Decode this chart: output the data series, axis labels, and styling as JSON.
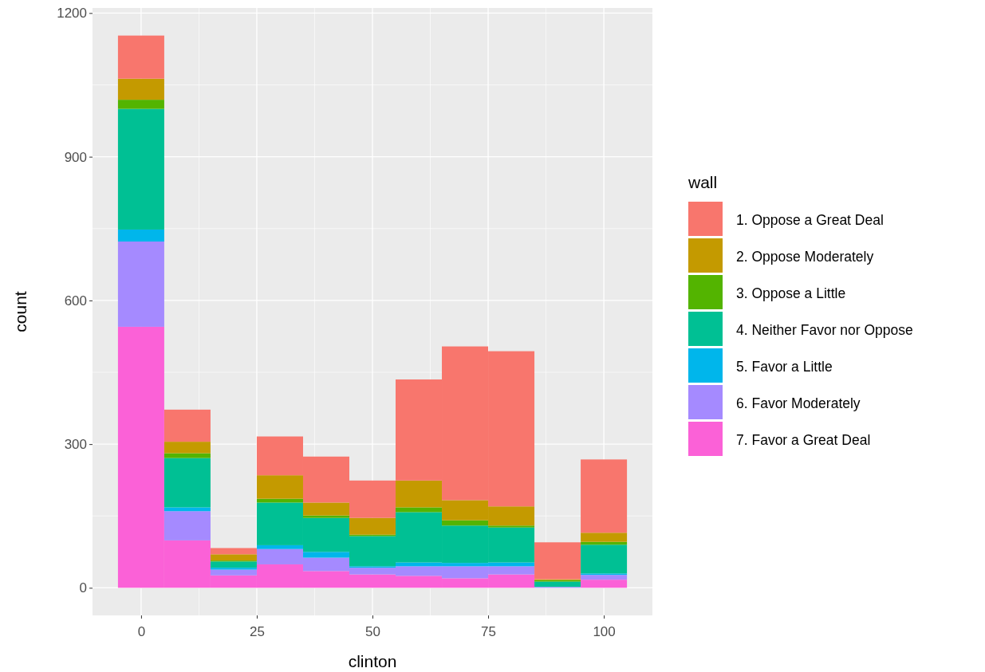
{
  "chart_data": {
    "type": "bar",
    "xlabel": "clinton",
    "ylabel": "count",
    "legend_title": "wall",
    "legend": "right",
    "grid": true,
    "stacked": true,
    "x": [
      0,
      10,
      20,
      30,
      40,
      50,
      60,
      70,
      80,
      90,
      100
    ],
    "xlim": [
      -10.5,
      110.5
    ],
    "xticks": [
      0,
      25,
      50,
      75,
      100
    ],
    "ylim": [
      -57.6,
      1210.6
    ],
    "yticks": [
      0,
      300,
      600,
      900,
      1200
    ],
    "series": [
      {
        "name": "7. Favor a Great Deal",
        "color": "#fb61d7",
        "values": [
          545,
          99,
          26,
          49,
          35,
          28,
          25,
          20,
          28,
          0,
          17
        ]
      },
      {
        "name": "6. Favor Moderately",
        "color": "#a58aff",
        "values": [
          178,
          61,
          12,
          32,
          28,
          14,
          20,
          25,
          17,
          2,
          10
        ]
      },
      {
        "name": "5. Favor a Little",
        "color": "#00b6eb",
        "values": [
          25,
          8,
          4,
          8,
          12,
          3,
          8,
          7,
          8,
          0,
          3
        ]
      },
      {
        "name": "4. Neither Favor nor Oppose",
        "color": "#00c094",
        "values": [
          252,
          103,
          13,
          89,
          71,
          63,
          105,
          78,
          73,
          11,
          60
        ]
      },
      {
        "name": "3. Oppose a Little",
        "color": "#53b400",
        "values": [
          19,
          10,
          2,
          8,
          5,
          3,
          10,
          11,
          4,
          3,
          6
        ]
      },
      {
        "name": "2. Oppose Moderately",
        "color": "#c49a00",
        "values": [
          44,
          24,
          13,
          49,
          27,
          35,
          56,
          42,
          40,
          2,
          19
        ]
      },
      {
        "name": "1. Oppose a Great Deal",
        "color": "#f8766d",
        "values": [
          90,
          67,
          13,
          81,
          96,
          78,
          211,
          321,
          324,
          77,
          153
        ]
      }
    ]
  }
}
